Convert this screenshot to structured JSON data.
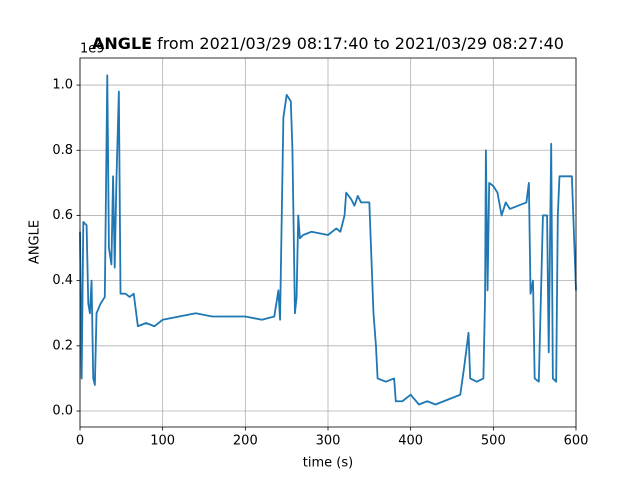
{
  "chart_data": {
    "type": "line",
    "title_parts": [
      "ANGLE",
      "from 2021/03/29 08:17:40 to 2021/03/29 08:27:40"
    ],
    "x_label": "time (s)",
    "y_label": "ANGLE",
    "offset_text": "1e9",
    "color": "#1f77b4",
    "grid": true,
    "xlim": [
      0,
      600
    ],
    "xticks": [
      0,
      100,
      200,
      300,
      400,
      500,
      600
    ],
    "ylim": [
      -0.049,
      1.083
    ],
    "yticks": [
      {
        "value": 0,
        "label": "0.0"
      },
      {
        "value": 0.2,
        "label": "0.2"
      },
      {
        "value": 0.4,
        "label": "0.4"
      },
      {
        "value": 0.6,
        "label": "0.6"
      },
      {
        "value": 0.8,
        "label": "0.8"
      },
      {
        "value": 1,
        "label": "1.0"
      }
    ],
    "x": [
      0,
      2,
      4,
      8,
      10,
      12,
      14,
      16,
      18,
      20,
      25,
      30,
      33,
      35,
      38,
      40,
      42,
      44,
      47,
      49,
      55,
      60,
      65,
      70,
      80,
      90,
      100,
      120,
      140,
      160,
      180,
      200,
      220,
      235,
      240,
      242,
      246,
      250,
      255,
      257,
      260,
      262,
      264,
      266,
      270,
      280,
      300,
      310,
      315,
      320,
      322,
      328,
      332,
      336,
      340,
      350,
      355,
      358,
      360,
      370,
      380,
      382,
      390,
      400,
      410,
      420,
      430,
      440,
      450,
      460,
      465,
      470,
      472,
      480,
      488,
      490,
      491,
      493,
      495,
      500,
      505,
      510,
      515,
      520,
      530,
      540,
      543,
      545,
      548,
      550,
      555,
      560,
      565,
      567,
      570,
      572,
      576,
      578,
      580,
      590,
      595,
      600
    ],
    "values": [
      0.55,
      0.1,
      0.58,
      0.57,
      0.33,
      0.3,
      0.4,
      0.1,
      0.08,
      0.3,
      0.33,
      0.35,
      1.03,
      0.5,
      0.45,
      0.72,
      0.44,
      0.7,
      0.98,
      0.36,
      0.36,
      0.35,
      0.36,
      0.26,
      0.27,
      0.26,
      0.28,
      0.29,
      0.3,
      0.29,
      0.29,
      0.29,
      0.28,
      0.29,
      0.37,
      0.28,
      0.9,
      0.97,
      0.95,
      0.8,
      0.3,
      0.35,
      0.6,
      0.53,
      0.54,
      0.55,
      0.54,
      0.56,
      0.55,
      0.6,
      0.67,
      0.65,
      0.63,
      0.66,
      0.64,
      0.64,
      0.3,
      0.2,
      0.1,
      0.09,
      0.1,
      0.03,
      0.03,
      0.05,
      0.02,
      0.03,
      0.02,
      0.03,
      0.04,
      0.05,
      0.14,
      0.24,
      0.1,
      0.09,
      0.1,
      0.35,
      0.8,
      0.37,
      0.7,
      0.69,
      0.67,
      0.6,
      0.64,
      0.62,
      0.63,
      0.64,
      0.7,
      0.36,
      0.4,
      0.1,
      0.09,
      0.6,
      0.6,
      0.18,
      0.82,
      0.1,
      0.09,
      0.6,
      0.72,
      0.72,
      0.72,
      0.37
    ]
  }
}
